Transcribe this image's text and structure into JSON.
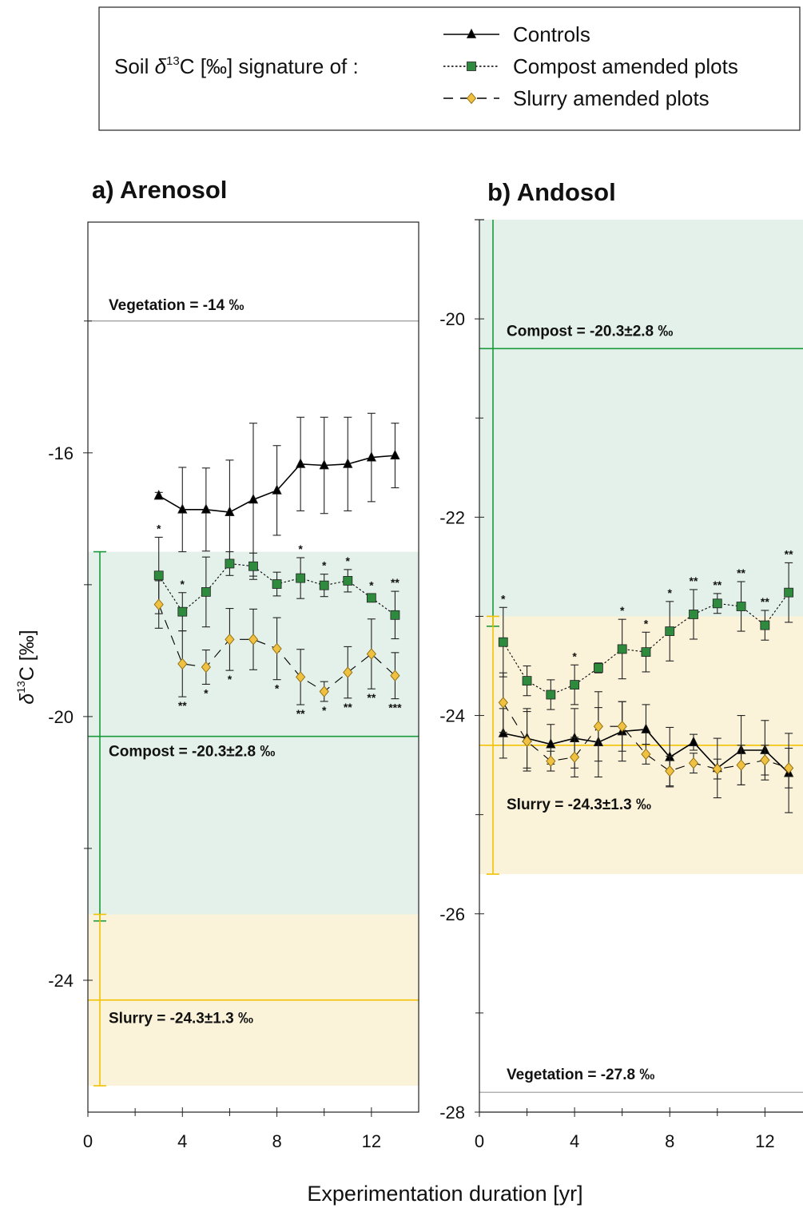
{
  "legend": {
    "title": {
      "prefix": "Soil ",
      "symbol": "δ",
      "isotope": "13",
      "suffix": "C [‰] signature of :"
    }
  },
  "xlabel": "Experimentation duration [yr]",
  "ylabel": {
    "symbol": "δ",
    "isotope": "13",
    "suffix": "C [‰]"
  },
  "chart_data": [
    {
      "type": "line",
      "title": "a) Arenosol",
      "frame": true,
      "x": [
        3,
        4,
        5,
        6,
        7,
        8,
        9,
        10,
        11,
        12,
        13
      ],
      "xlim": [
        0,
        14
      ],
      "xticks": [
        0,
        4,
        8,
        12
      ],
      "xminor": [
        2,
        6,
        10
      ],
      "ylim": [
        -26,
        -12.5
      ],
      "yticks": [
        -24,
        -20,
        -16
      ],
      "yminor": [
        -22,
        -18,
        -14
      ],
      "series": [
        {
          "name": "Controls",
          "marker": "triangle",
          "color": "#000000",
          "dash": "solid",
          "values": [
            -16.65,
            -16.86,
            -16.86,
            -16.9,
            -16.71,
            -16.57,
            -16.17,
            -16.19,
            -16.17,
            -16.07,
            -16.04
          ],
          "errors": [
            0.05,
            0.64,
            0.63,
            0.79,
            1.16,
            0.68,
            0.71,
            0.73,
            0.71,
            0.67,
            0.49
          ]
        },
        {
          "name": "Compost amended plots",
          "marker": "square",
          "color": "#2e8b3e",
          "dash": "dotted",
          "values": [
            -17.86,
            -18.41,
            -18.11,
            -17.68,
            -17.72,
            -17.99,
            -17.9,
            -18.01,
            -17.94,
            -18.2,
            -18.46
          ],
          "errors": [
            0.58,
            0.29,
            0.53,
            0.18,
            0.2,
            0.18,
            0.31,
            0.17,
            0.17,
            0.06,
            0.36
          ],
          "significance_above": [
            "*",
            "*",
            null,
            null,
            null,
            null,
            "*",
            "*",
            "*",
            "*",
            "**"
          ]
        },
        {
          "name": "Slurry amended plots",
          "marker": "diamond",
          "color": "#f0c040",
          "dash": "dashed",
          "values": [
            -18.3,
            -19.2,
            -19.25,
            -18.83,
            -18.83,
            -18.97,
            -19.4,
            -19.62,
            -19.33,
            -19.05,
            -19.38
          ],
          "errors": [
            0.36,
            0.5,
            0.26,
            0.47,
            0.46,
            0.47,
            0.42,
            0.15,
            0.39,
            0.53,
            0.35
          ],
          "significance_below": [
            null,
            "**",
            "*",
            "*",
            null,
            "*",
            "**",
            "*",
            "**",
            "**",
            "***"
          ]
        }
      ],
      "references": [
        {
          "label": "Vegetation = -14 ‰",
          "value": -14,
          "color": "#999999"
        },
        {
          "label": "Compost = -20.3±2.8 ‰",
          "value": -20.3,
          "sd": 2.8,
          "color": "#1a9a3a",
          "band_color": "#e3f1ea"
        },
        {
          "label": "Slurry = -24.3±1.3 ‰",
          "value": -24.3,
          "sd": 1.3,
          "color": "#f2c200",
          "band_color": "#fbf3d9"
        }
      ]
    },
    {
      "type": "line",
      "title": "b) Andosol",
      "frame": false,
      "x": [
        1,
        2,
        3,
        4,
        5,
        6,
        7,
        8,
        9,
        10,
        11,
        12,
        13
      ],
      "xlim": [
        0,
        13.6
      ],
      "xticks": [
        0,
        4,
        8,
        12
      ],
      "xminor": [
        2,
        6,
        10
      ],
      "ylim": [
        -28,
        -19
      ],
      "yticks": [
        -28,
        -26,
        -24,
        -22,
        -20
      ],
      "yminor": [
        -27,
        -25,
        -23,
        -21
      ],
      "series": [
        {
          "marker": "triangle",
          "color": "#000000",
          "dash": "solid",
          "values": [
            -24.18,
            -24.23,
            -24.29,
            -24.23,
            -24.27,
            -24.16,
            -24.14,
            -24.42,
            -24.27,
            -24.53,
            -24.35,
            -24.35,
            -24.58
          ],
          "errors": [
            0.25,
            0.3,
            0.2,
            0.3,
            0.35,
            0.3,
            0.25,
            0.3,
            0.08,
            0.3,
            0.35,
            0.3,
            0.4
          ]
        },
        {
          "marker": "square",
          "color": "#2e8b3e",
          "dash": "dotted",
          "values": [
            -23.26,
            -23.65,
            -23.79,
            -23.69,
            -23.52,
            -23.33,
            -23.36,
            -23.15,
            -22.98,
            -22.87,
            -22.9,
            -23.09,
            -22.76
          ],
          "errors": [
            0.35,
            0.15,
            0.15,
            0.2,
            0.05,
            0.3,
            0.2,
            0.3,
            0.25,
            0.1,
            0.25,
            0.15,
            0.3
          ],
          "significance_above": [
            "*",
            null,
            null,
            "*",
            null,
            "*",
            "*",
            "*",
            "**",
            "**",
            "**",
            "**",
            "**"
          ]
        },
        {
          "marker": "diamond",
          "color": "#f0c040",
          "dash": "dashed",
          "values": [
            -23.87,
            -24.26,
            -24.46,
            -24.42,
            -24.11,
            -24.11,
            -24.39,
            -24.56,
            -24.48,
            -24.54,
            -24.5,
            -24.45,
            -24.53
          ],
          "errors": [
            0.3,
            0.3,
            0.1,
            0.2,
            0.35,
            0.25,
            0.1,
            0.15,
            0.1,
            0.1,
            0.2,
            0.15,
            0.2
          ]
        }
      ],
      "references": [
        {
          "label": "Vegetation = -27.8 ‰",
          "value": -27.8,
          "color": "#999999"
        },
        {
          "label": "Compost = -20.3±2.8 ‰",
          "value": -20.3,
          "sd": 2.8,
          "color": "#1a9a3a",
          "band_color": "#e3f1ea"
        },
        {
          "label": "Slurry = -24.3±1.3 ‰",
          "value": -24.3,
          "sd": 1.3,
          "color": "#f2c200",
          "band_color": "#fbf3d9"
        }
      ]
    }
  ]
}
